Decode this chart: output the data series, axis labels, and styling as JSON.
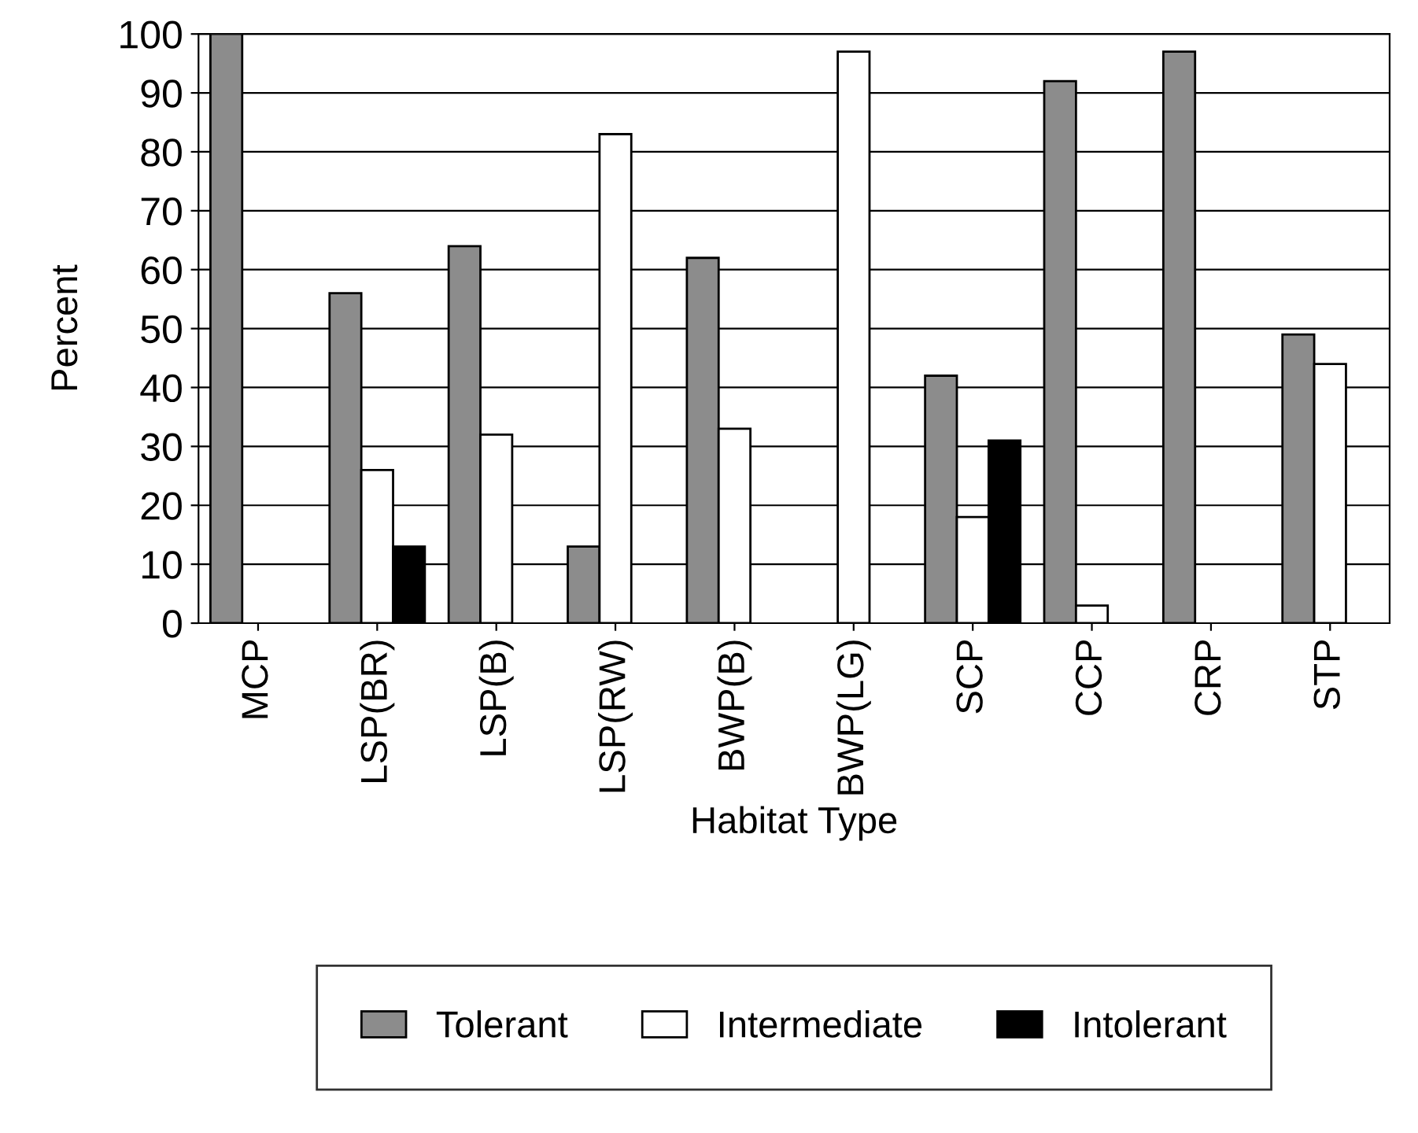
{
  "chart_data": {
    "type": "bar",
    "xlabel": "Habitat Type",
    "ylabel": "Percent",
    "categories": [
      "MCP",
      "LSP(BR)",
      "LSP(B)",
      "LSP(RW)",
      "BWP(B)",
      "BWP(LG)",
      "SCP",
      "CCP",
      "CRP",
      "STP"
    ],
    "series": [
      {
        "name": "Tolerant",
        "color": "#8c8c8c",
        "values": [
          100,
          56,
          64,
          13,
          62,
          0,
          42,
          92,
          97,
          49
        ]
      },
      {
        "name": "Intermediate",
        "color": "#ffffff",
        "values": [
          0,
          26,
          32,
          83,
          33,
          97,
          18,
          3,
          0,
          44
        ]
      },
      {
        "name": "Intolerant",
        "color": "#000000",
        "values": [
          0,
          13,
          0,
          0,
          0,
          0,
          31,
          0,
          0,
          0
        ]
      }
    ],
    "ylim": [
      0,
      100
    ],
    "yticks": [
      0,
      10,
      20,
      30,
      40,
      50,
      60,
      70,
      80,
      90,
      100
    ],
    "grid": "y",
    "legend": "bottom"
  }
}
